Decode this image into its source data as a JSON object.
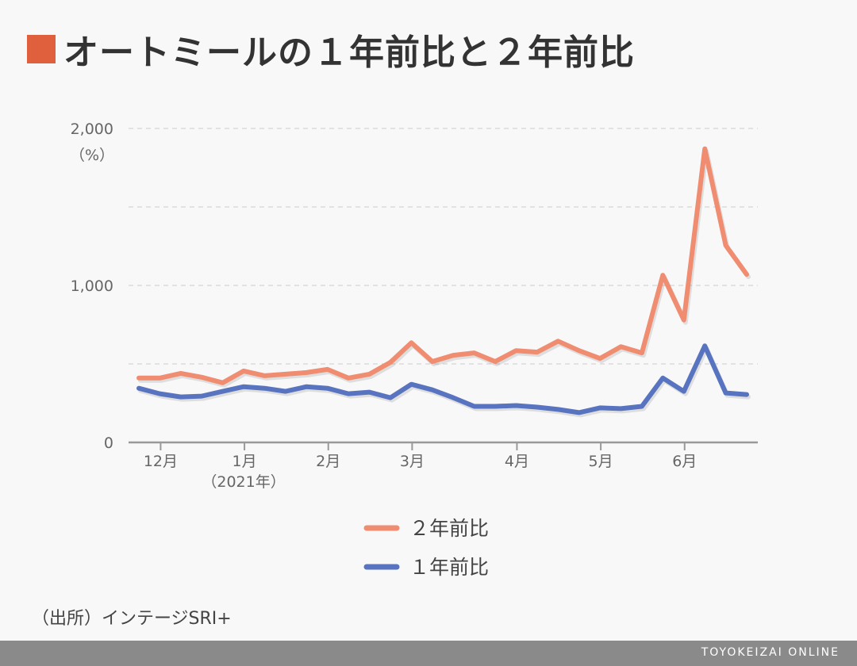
{
  "title": "オートミールの１年前比と２年前比",
  "accent_color": "#e05f3c",
  "chart_data": {
    "type": "line",
    "ylim": [
      0,
      2000
    ],
    "yticks": [
      {
        "value": 0,
        "label": "0"
      },
      {
        "value": 1000,
        "label": "1,000"
      },
      {
        "value": 2000,
        "label": "2,000"
      }
    ],
    "y_unit": "（%）",
    "grid": true,
    "x_count": 30,
    "xtick_labels": [
      {
        "index": 1,
        "label": "12月"
      },
      {
        "index": 5,
        "label": "1月"
      },
      {
        "index": 9,
        "label": "2月"
      },
      {
        "index": 13,
        "label": "3月"
      },
      {
        "index": 18,
        "label": "4月"
      },
      {
        "index": 22,
        "label": "5月"
      },
      {
        "index": 26,
        "label": "6月"
      }
    ],
    "year_note": {
      "index": 5,
      "label": "（2021年）"
    },
    "series": [
      {
        "name": "２年前比",
        "color": "#f08c70",
        "values": [
          410,
          410,
          440,
          415,
          380,
          455,
          425,
          435,
          445,
          465,
          410,
          435,
          510,
          635,
          515,
          555,
          570,
          515,
          585,
          575,
          645,
          585,
          535,
          610,
          570,
          1065,
          780,
          1870,
          1255,
          1070
        ]
      },
      {
        "name": "１年前比",
        "color": "#5873bf",
        "values": [
          345,
          310,
          290,
          295,
          325,
          355,
          345,
          325,
          355,
          345,
          310,
          320,
          285,
          370,
          335,
          285,
          230,
          230,
          235,
          225,
          210,
          190,
          220,
          215,
          230,
          410,
          325,
          615,
          315,
          305
        ]
      }
    ]
  },
  "source": "（出所）インテージSRI+",
  "footer_brand": "TOYOKEIZAI ONLINE"
}
